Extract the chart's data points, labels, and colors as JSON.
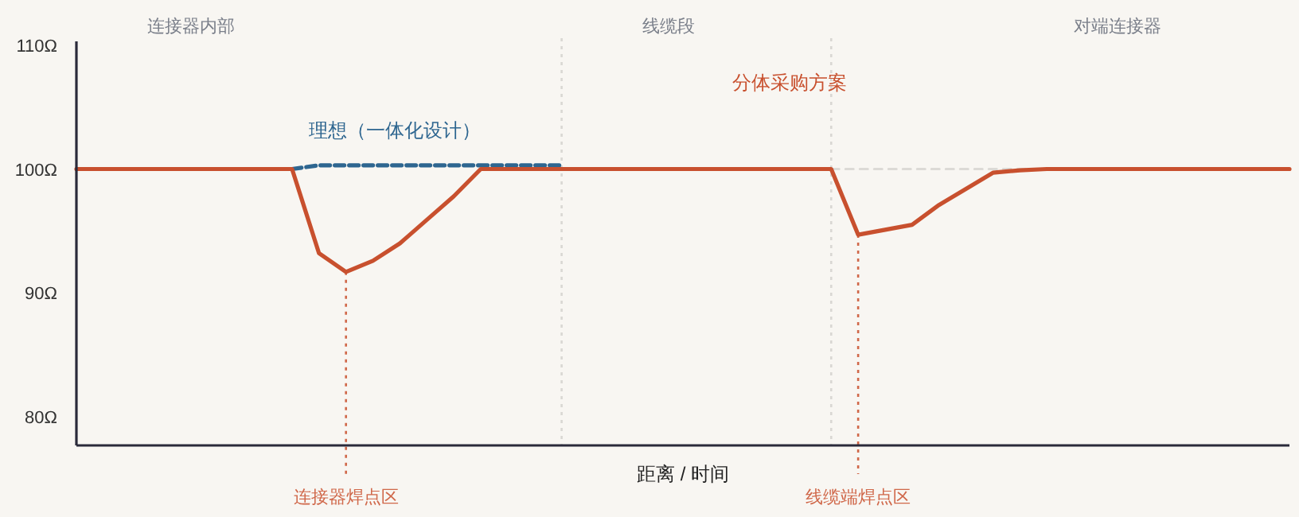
{
  "chart_data": {
    "type": "line",
    "xlabel": "距离 / 时间",
    "categories": [
      null,
      null,
      null,
      null,
      null,
      null,
      null,
      null,
      null,
      null,
      null,
      null,
      null,
      null,
      null,
      null,
      null,
      null,
      null,
      null,
      null,
      null,
      null,
      null,
      null,
      null,
      null,
      null,
      null,
      null,
      null,
      null,
      null,
      null,
      null,
      null,
      null,
      null,
      null,
      null,
      null,
      null,
      null,
      null,
      null,
      null
    ],
    "ylim": [
      77.7,
      110.3
    ],
    "yticks": [
      {
        "value": 80,
        "label": "80Ω"
      },
      {
        "value": 90,
        "label": "90Ω"
      },
      {
        "value": 100,
        "label": "100Ω"
      },
      {
        "value": 110,
        "label": "110Ω"
      }
    ],
    "marker": "none",
    "series": [
      {
        "color": "#dcdad6",
        "line_style": "dashed",
        "values": [
          null,
          null,
          null,
          null,
          null,
          null,
          null,
          null,
          null,
          null,
          null,
          null,
          null,
          null,
          null,
          null,
          null,
          null,
          null,
          null,
          null,
          null,
          null,
          null,
          null,
          null,
          null,
          null,
          100,
          100,
          100,
          100,
          100,
          100,
          100,
          100,
          100,
          null,
          null,
          null,
          null,
          null,
          null,
          null,
          null,
          null
        ]
      },
      {
        "name": "理想（一体化设计）",
        "color": "#2e6690",
        "line_style": "dashed",
        "values": [
          null,
          null,
          null,
          null,
          null,
          null,
          null,
          null,
          100,
          100.3,
          100.3,
          100.3,
          100.3,
          100.3,
          100.3,
          100.3,
          100.3,
          100.3,
          100.3,
          null,
          null,
          null,
          null,
          null,
          null,
          null,
          null,
          null,
          null,
          null,
          null,
          null,
          null,
          null,
          null,
          null,
          null,
          null,
          null,
          null,
          null,
          null,
          null,
          null,
          null,
          null
        ]
      },
      {
        "name": "分体采购方案",
        "color": "#c8502e",
        "line_style": "solid",
        "values": [
          100,
          100,
          100,
          100,
          100,
          100,
          100,
          100,
          100,
          93.2,
          91.7,
          92.6,
          94.0,
          95.9,
          97.8,
          100,
          100,
          100,
          100,
          100,
          100,
          100,
          100,
          100,
          100,
          100,
          100,
          100,
          100,
          94.7,
          95.1,
          95.5,
          97.1,
          98.4,
          99.7,
          99.9,
          100,
          100,
          100,
          100,
          100,
          100,
          100,
          100,
          100,
          100
        ]
      }
    ],
    "annotations": [
      "连接器内部",
      "线缆段",
      "对端连接器",
      "连接器焊点区",
      "线缆端焊点区"
    ]
  }
}
